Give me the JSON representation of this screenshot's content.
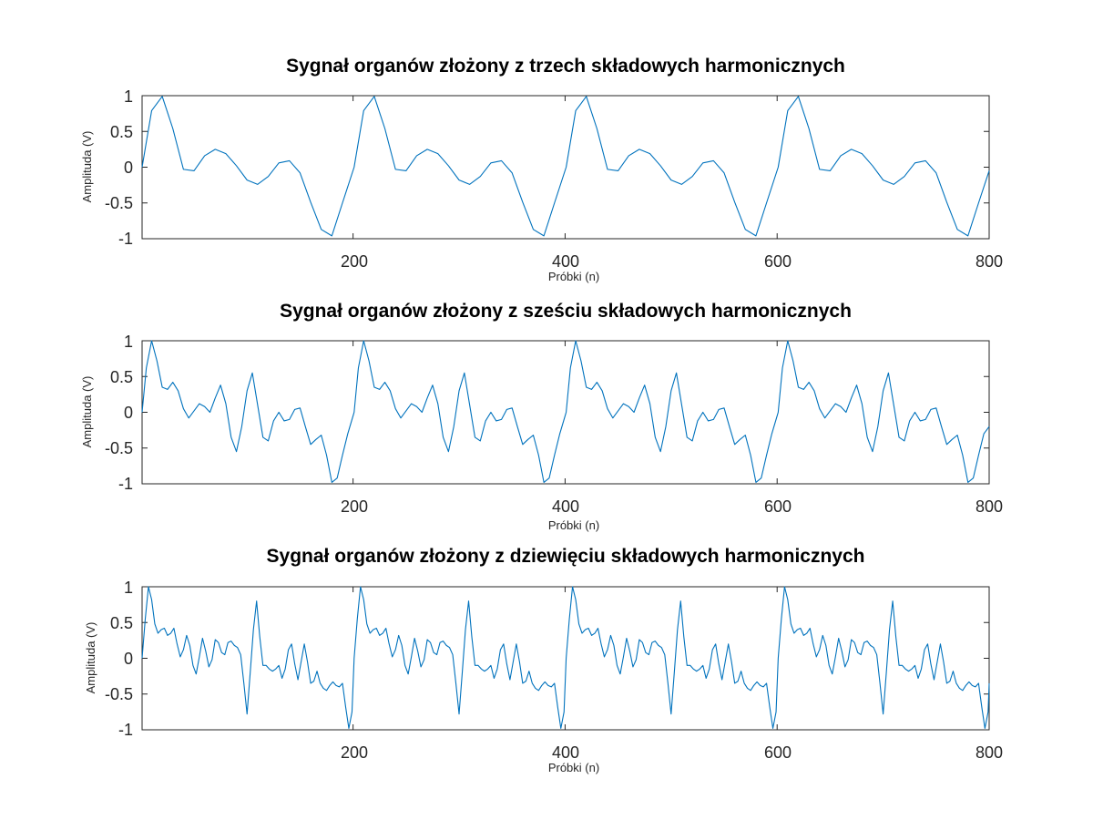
{
  "chart_data": [
    {
      "type": "line",
      "title": "Sygnał organów złożony z trzech składowych harmonicznych",
      "xlabel": "Próbki (n)",
      "ylabel": "Amplituda (V)",
      "xlim": [
        1,
        800
      ],
      "ylim": [
        -1,
        1
      ],
      "xticks": [
        "200",
        "400",
        "600",
        "800"
      ],
      "yticks": [
        "1",
        "0.5",
        "0",
        "-0.5",
        "-1"
      ],
      "grid": false,
      "series": [
        {
          "color": "#0072BD",
          "x": [
            1,
            10,
            20,
            30,
            40,
            50,
            60,
            70,
            80,
            90,
            100,
            110,
            120,
            130,
            140,
            150,
            160,
            170,
            180,
            190,
            201,
            210,
            220,
            230,
            240,
            250,
            260,
            270,
            280,
            290,
            300,
            310,
            320,
            330,
            340,
            350,
            360,
            370,
            380,
            390,
            401,
            410,
            420,
            430,
            440,
            450,
            460,
            470,
            480,
            490,
            500,
            510,
            520,
            530,
            540,
            550,
            560,
            570,
            580,
            590,
            601,
            610,
            620,
            630,
            640,
            650,
            660,
            670,
            680,
            690,
            700,
            710,
            720,
            730,
            740,
            750,
            760,
            770,
            780,
            790,
            800
          ],
          "values": [
            0,
            0.79,
            0.99,
            0.54,
            -0.03,
            -0.05,
            0.16,
            0.25,
            0.19,
            0.02,
            -0.18,
            -0.24,
            -0.13,
            0.06,
            0.09,
            -0.08,
            -0.49,
            -0.87,
            -0.96,
            -0.5,
            0,
            0.79,
            0.99,
            0.54,
            -0.03,
            -0.05,
            0.16,
            0.25,
            0.19,
            0.02,
            -0.18,
            -0.24,
            -0.13,
            0.06,
            0.09,
            -0.08,
            -0.49,
            -0.87,
            -0.96,
            -0.5,
            0,
            0.79,
            0.99,
            0.54,
            -0.03,
            -0.05,
            0.16,
            0.25,
            0.19,
            0.02,
            -0.18,
            -0.24,
            -0.13,
            0.06,
            0.09,
            -0.08,
            -0.49,
            -0.87,
            -0.96,
            -0.5,
            0,
            0.79,
            0.99,
            0.54,
            -0.03,
            -0.05,
            0.16,
            0.25,
            0.19,
            0.02,
            -0.18,
            -0.24,
            -0.13,
            0.06,
            0.09,
            -0.08,
            -0.49,
            -0.87,
            -0.96,
            -0.5,
            -0.05
          ]
        }
      ]
    },
    {
      "type": "line",
      "title": "Sygnał organów złożony z sześciu składowych harmonicznych",
      "xlabel": "Próbki (n)",
      "ylabel": "Amplituda (V)",
      "xlim": [
        1,
        800
      ],
      "ylim": [
        -1,
        1
      ],
      "xticks": [
        "200",
        "400",
        "600",
        "800"
      ],
      "yticks": [
        "1",
        "0.5",
        "0",
        "-0.5",
        "-1"
      ],
      "grid": false,
      "series": [
        {
          "color": "#0072BD",
          "x": [
            1,
            5,
            10,
            15,
            20,
            25,
            30,
            35,
            40,
            45,
            50,
            55,
            60,
            65,
            70,
            75,
            80,
            85,
            90,
            95,
            100,
            105,
            110,
            115,
            120,
            125,
            130,
            135,
            140,
            145,
            150,
            155,
            160,
            165,
            170,
            175,
            180,
            185,
            190,
            195,
            200,
            201,
            205,
            210,
            215,
            220,
            225,
            230,
            235,
            240,
            245,
            250,
            255,
            260,
            265,
            270,
            275,
            280,
            285,
            290,
            295,
            300,
            305,
            310,
            315,
            320,
            325,
            330,
            335,
            340,
            345,
            350,
            355,
            360,
            365,
            370,
            375,
            380,
            385,
            390,
            395,
            400,
            401,
            405,
            410,
            415,
            420,
            425,
            430,
            435,
            440,
            445,
            450,
            455,
            460,
            465,
            470,
            475,
            480,
            485,
            490,
            495,
            500,
            505,
            510,
            515,
            520,
            525,
            530,
            535,
            540,
            545,
            550,
            555,
            560,
            565,
            570,
            575,
            580,
            585,
            590,
            595,
            600,
            601,
            605,
            610,
            615,
            620,
            625,
            630,
            635,
            640,
            645,
            650,
            655,
            660,
            665,
            670,
            675,
            680,
            685,
            690,
            695,
            700,
            705,
            710,
            715,
            720,
            725,
            730,
            735,
            740,
            745,
            750,
            755,
            760,
            765,
            770,
            775,
            780,
            785,
            790,
            795,
            800
          ],
          "values": [
            0,
            0.62,
            1.0,
            0.72,
            0.35,
            0.32,
            0.42,
            0.3,
            0.05,
            -0.08,
            0.02,
            0.12,
            0.08,
            0.0,
            0.2,
            0.38,
            0.12,
            -0.35,
            -0.55,
            -0.2,
            0.3,
            0.55,
            0.1,
            -0.35,
            -0.4,
            -0.12,
            0.0,
            -0.12,
            -0.1,
            0.04,
            0.06,
            -0.2,
            -0.45,
            -0.38,
            -0.32,
            -0.6,
            -0.98,
            -0.92,
            -0.6,
            -0.3,
            -0.05,
            0,
            0.62,
            1.0,
            0.72,
            0.35,
            0.32,
            0.42,
            0.3,
            0.05,
            -0.08,
            0.02,
            0.12,
            0.08,
            0.0,
            0.2,
            0.38,
            0.12,
            -0.35,
            -0.55,
            -0.2,
            0.3,
            0.55,
            0.1,
            -0.35,
            -0.4,
            -0.12,
            0.0,
            -0.12,
            -0.1,
            0.04,
            0.06,
            -0.2,
            -0.45,
            -0.38,
            -0.32,
            -0.6,
            -0.98,
            -0.92,
            -0.6,
            -0.3,
            -0.05,
            0,
            0.62,
            1.0,
            0.72,
            0.35,
            0.32,
            0.42,
            0.3,
            0.05,
            -0.08,
            0.02,
            0.12,
            0.08,
            0.0,
            0.2,
            0.38,
            0.12,
            -0.35,
            -0.55,
            -0.2,
            0.3,
            0.55,
            0.1,
            -0.35,
            -0.4,
            -0.12,
            0.0,
            -0.12,
            -0.1,
            0.04,
            0.06,
            -0.2,
            -0.45,
            -0.38,
            -0.32,
            -0.6,
            -0.98,
            -0.92,
            -0.6,
            -0.3,
            -0.05,
            0,
            0.62,
            1.0,
            0.72,
            0.35,
            0.32,
            0.42,
            0.3,
            0.05,
            -0.08,
            0.02,
            0.12,
            0.08,
            0.0,
            0.2,
            0.38,
            0.12,
            -0.35,
            -0.55,
            -0.2,
            0.3,
            0.55,
            0.1,
            -0.35,
            -0.4,
            -0.12,
            0.0,
            -0.12,
            -0.1,
            0.04,
            0.06,
            -0.2,
            -0.45,
            -0.38,
            -0.32,
            -0.6,
            -0.98,
            -0.92,
            -0.6,
            -0.3,
            -0.2
          ]
        }
      ]
    },
    {
      "type": "line",
      "title": "Sygnał organów złożony z dziewięciu składowych harmonicznych",
      "xlabel": "Próbki (n)",
      "ylabel": "Amplituda (V)",
      "xlim": [
        1,
        800
      ],
      "ylim": [
        -1,
        1
      ],
      "xticks": [
        "200",
        "400",
        "600",
        "800"
      ],
      "yticks": [
        "1",
        "0.5",
        "0",
        "-0.5",
        "-1"
      ],
      "grid": false,
      "series": [
        {
          "color": "#0072BD",
          "x": [
            1,
            4,
            7,
            10,
            13,
            16,
            19,
            22,
            25,
            28,
            31,
            34,
            37,
            40,
            43,
            46,
            49,
            52,
            55,
            58,
            61,
            64,
            67,
            70,
            73,
            76,
            79,
            82,
            85,
            88,
            91,
            94,
            97,
            100,
            103,
            106,
            109,
            112,
            115,
            118,
            121,
            124,
            127,
            130,
            133,
            136,
            139,
            142,
            145,
            148,
            151,
            154,
            157,
            160,
            163,
            166,
            169,
            172,
            175,
            178,
            181,
            184,
            187,
            190,
            193,
            196,
            199,
            201,
            204,
            207,
            210,
            213,
            216,
            219,
            222,
            225,
            228,
            231,
            234,
            237,
            240,
            243,
            246,
            249,
            252,
            255,
            258,
            261,
            264,
            267,
            270,
            273,
            276,
            279,
            282,
            285,
            288,
            291,
            294,
            297,
            300,
            303,
            306,
            309,
            312,
            315,
            318,
            321,
            324,
            327,
            330,
            333,
            336,
            339,
            342,
            345,
            348,
            351,
            354,
            357,
            360,
            363,
            366,
            369,
            372,
            375,
            378,
            381,
            384,
            387,
            390,
            393,
            396,
            399,
            401,
            404,
            407,
            410,
            413,
            416,
            419,
            422,
            425,
            428,
            431,
            434,
            437,
            440,
            443,
            446,
            449,
            452,
            455,
            458,
            461,
            464,
            467,
            470,
            473,
            476,
            479,
            482,
            485,
            488,
            491,
            494,
            497,
            500,
            503,
            506,
            509,
            512,
            515,
            518,
            521,
            524,
            527,
            530,
            533,
            536,
            539,
            542,
            545,
            548,
            551,
            554,
            557,
            560,
            563,
            566,
            569,
            572,
            575,
            578,
            581,
            584,
            587,
            590,
            593,
            596,
            599,
            601,
            604,
            607,
            610,
            613,
            616,
            619,
            622,
            625,
            628,
            631,
            634,
            637,
            640,
            643,
            646,
            649,
            652,
            655,
            658,
            661,
            664,
            667,
            670,
            673,
            676,
            679,
            682,
            685,
            688,
            691,
            694,
            697,
            700,
            703,
            706,
            709,
            712,
            715,
            718,
            721,
            724,
            727,
            730,
            733,
            736,
            739,
            742,
            745,
            748,
            751,
            754,
            757,
            760,
            763,
            766,
            769,
            772,
            775,
            778,
            781,
            784,
            787,
            790,
            793,
            796,
            799,
            800
          ],
          "values": [
            0,
            0.55,
            1.0,
            0.82,
            0.48,
            0.35,
            0.4,
            0.42,
            0.32,
            0.35,
            0.42,
            0.2,
            0.02,
            0.12,
            0.32,
            0.18,
            -0.1,
            -0.22,
            0.02,
            0.28,
            0.1,
            -0.12,
            -0.02,
            0.26,
            0.22,
            0.08,
            0.05,
            0.22,
            0.24,
            0.18,
            0.15,
            0.05,
            -0.35,
            -0.78,
            -0.2,
            0.4,
            0.8,
            0.3,
            -0.1,
            -0.1,
            -0.15,
            -0.18,
            -0.15,
            -0.1,
            -0.28,
            -0.15,
            0.12,
            0.2,
            -0.08,
            -0.3,
            -0.05,
            0.2,
            -0.05,
            -0.35,
            -0.32,
            -0.18,
            -0.35,
            -0.42,
            -0.45,
            -0.38,
            -0.33,
            -0.38,
            -0.4,
            -0.35,
            -0.68,
            -0.98,
            -0.75,
            0,
            0.55,
            1.0,
            0.82,
            0.48,
            0.35,
            0.4,
            0.42,
            0.32,
            0.35,
            0.42,
            0.2,
            0.02,
            0.12,
            0.32,
            0.18,
            -0.1,
            -0.22,
            0.02,
            0.28,
            0.1,
            -0.12,
            -0.02,
            0.26,
            0.22,
            0.08,
            0.05,
            0.22,
            0.24,
            0.18,
            0.15,
            0.05,
            -0.35,
            -0.78,
            -0.2,
            0.4,
            0.8,
            0.3,
            -0.1,
            -0.1,
            -0.15,
            -0.18,
            -0.15,
            -0.1,
            -0.28,
            -0.15,
            0.12,
            0.2,
            -0.08,
            -0.3,
            -0.05,
            0.2,
            -0.05,
            -0.35,
            -0.32,
            -0.18,
            -0.35,
            -0.42,
            -0.45,
            -0.38,
            -0.33,
            -0.38,
            -0.4,
            -0.35,
            -0.68,
            -0.98,
            -0.75,
            0,
            0.55,
            1.0,
            0.82,
            0.48,
            0.35,
            0.4,
            0.42,
            0.32,
            0.35,
            0.42,
            0.2,
            0.02,
            0.12,
            0.32,
            0.18,
            -0.1,
            -0.22,
            0.02,
            0.28,
            0.1,
            -0.12,
            -0.02,
            0.26,
            0.22,
            0.08,
            0.05,
            0.22,
            0.24,
            0.18,
            0.15,
            0.05,
            -0.35,
            -0.78,
            -0.2,
            0.4,
            0.8,
            0.3,
            -0.1,
            -0.1,
            -0.15,
            -0.18,
            -0.15,
            -0.1,
            -0.28,
            -0.15,
            0.12,
            0.2,
            -0.08,
            -0.3,
            -0.05,
            0.2,
            -0.05,
            -0.35,
            -0.32,
            -0.18,
            -0.35,
            -0.42,
            -0.45,
            -0.38,
            -0.33,
            -0.38,
            -0.4,
            -0.35,
            -0.68,
            -0.98,
            -0.75,
            0,
            0.55,
            1.0,
            0.82,
            0.48,
            0.35,
            0.4,
            0.42,
            0.32,
            0.35,
            0.42,
            0.2,
            0.02,
            0.12,
            0.32,
            0.18,
            -0.1,
            -0.22,
            0.02,
            0.28,
            0.1,
            -0.12,
            -0.02,
            0.26,
            0.22,
            0.08,
            0.05,
            0.22,
            0.24,
            0.18,
            0.15,
            0.05,
            -0.35,
            -0.78,
            -0.2,
            0.4,
            0.8,
            0.3,
            -0.1,
            -0.1,
            -0.15,
            -0.18,
            -0.15,
            -0.1,
            -0.28,
            -0.15,
            0.12,
            0.2,
            -0.08,
            -0.3,
            -0.05,
            0.2,
            -0.05,
            -0.35,
            -0.32,
            -0.18,
            -0.35,
            -0.42,
            -0.45,
            -0.38,
            -0.33,
            -0.38,
            -0.4,
            -0.35,
            -0.68,
            -0.98,
            -0.75,
            -0.35
          ]
        }
      ]
    }
  ]
}
